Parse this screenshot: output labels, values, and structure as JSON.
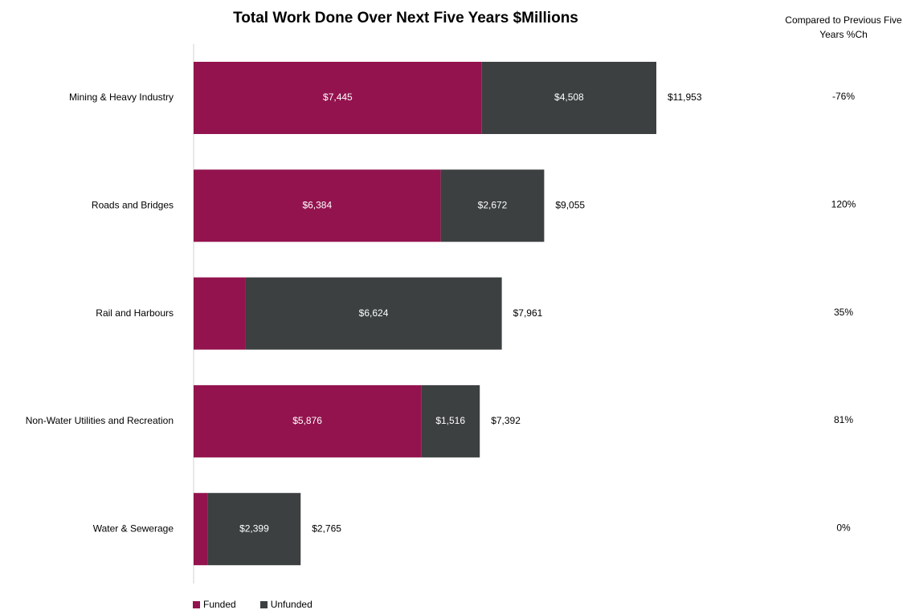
{
  "chart_data": {
    "type": "bar",
    "orientation": "horizontal",
    "stacked": true,
    "title": "Total Work Done Over Next Five Years $Millions",
    "categories": [
      "Mining & Heavy Industry",
      "Roads and Bridges",
      "Rail and Harbours",
      "Non-Water Utilities and Recreation",
      "Water & Sewerage"
    ],
    "series": [
      {
        "name": "Funded",
        "color": "#93134E",
        "values": [
          7445,
          6384,
          1337,
          5876,
          366
        ],
        "labels": [
          "$7,445",
          "$6,384",
          "",
          "$5,876",
          ""
        ]
      },
      {
        "name": "Unfunded",
        "color": "#3C4040",
        "values": [
          4508,
          2672,
          6624,
          1516,
          2399
        ],
        "labels": [
          "$4,508",
          "$2,672",
          "$6,624",
          "$1,516",
          "$2,399"
        ]
      }
    ],
    "totals": [
      "$11,953",
      "$9,055",
      "$7,961",
      "$7,392",
      "$2,765"
    ],
    "total_values": [
      11953,
      9055,
      7961,
      7392,
      2765
    ],
    "comparison": {
      "header_line1": "Compared to Previous Five",
      "header_line2": "Years %Ch",
      "values": [
        "-76%",
        "120%",
        "35%",
        "81%",
        "0%"
      ]
    },
    "xlim": [
      0,
      14000
    ],
    "grid": false,
    "legend_position": "bottom-left"
  }
}
